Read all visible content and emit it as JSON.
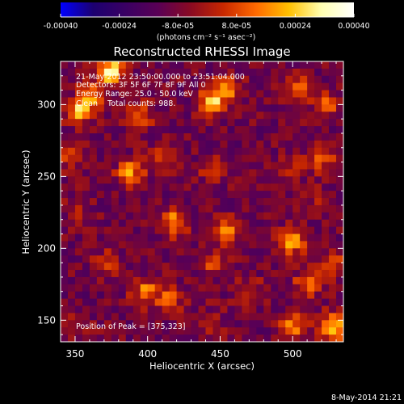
{
  "colorbar": {
    "tick_labels": [
      "-0.00040",
      "-0.00024",
      "-8.0e-05",
      "8.0e-05",
      "0.00024",
      "0.00040"
    ],
    "tick_values": [
      -0.0004,
      -0.00024,
      -8e-05,
      8e-05,
      0.00024,
      0.0004
    ],
    "range": [
      -0.0004,
      0.0004
    ],
    "unit_label": "(photons cm⁻² s⁻¹ asec⁻²)",
    "colormap": [
      "#0000ff",
      "#1c0070",
      "#3a0063",
      "#5a0055",
      "#8a0a22",
      "#c82800",
      "#ff6a00",
      "#ffc000",
      "#ffffb0",
      "#ffffff"
    ]
  },
  "chart_data": {
    "type": "heatmap",
    "title": "Reconstructed RHESSI Image",
    "xlabel": "Heliocentric X (arcsec)",
    "ylabel": "Heliocentric Y (arcsec)",
    "xlim": [
      340,
      535
    ],
    "ylim": [
      135,
      330
    ],
    "xticks": [
      350,
      400,
      450,
      500
    ],
    "yticks": [
      150,
      200,
      250,
      300
    ],
    "info_lines": [
      "21-May-2012 23:50:00.000 to 23:51:04.000",
      "Detectors: 3F 5F 6F 7F 8F 9F All 0",
      "Energy Range: 25.0 - 50.0 keV",
      "Clean    Total counts: 988."
    ],
    "peak_label": "Position of Peak = [375,323]",
    "peak": [
      375,
      323
    ],
    "sources": [
      {
        "x": 375,
        "y": 323,
        "value": 0.0004
      },
      {
        "x": 352,
        "y": 295,
        "value": 0.0003
      },
      {
        "x": 362,
        "y": 305,
        "value": 0.00026
      },
      {
        "x": 395,
        "y": 292,
        "value": 0.00018
      },
      {
        "x": 445,
        "y": 302,
        "value": 0.0003
      },
      {
        "x": 455,
        "y": 312,
        "value": 0.00022
      },
      {
        "x": 505,
        "y": 312,
        "value": 0.00018
      },
      {
        "x": 523,
        "y": 300,
        "value": 0.0002
      },
      {
        "x": 345,
        "y": 265,
        "value": 0.00012
      },
      {
        "x": 388,
        "y": 252,
        "value": 0.00026
      },
      {
        "x": 410,
        "y": 262,
        "value": 0.00016
      },
      {
        "x": 445,
        "y": 255,
        "value": 0.00014
      },
      {
        "x": 500,
        "y": 258,
        "value": 0.00012
      },
      {
        "x": 520,
        "y": 263,
        "value": 0.00022
      },
      {
        "x": 352,
        "y": 228,
        "value": 0.0001
      },
      {
        "x": 418,
        "y": 218,
        "value": 0.00028
      },
      {
        "x": 455,
        "y": 212,
        "value": 0.00022
      },
      {
        "x": 520,
        "y": 232,
        "value": 0.00014
      },
      {
        "x": 372,
        "y": 190,
        "value": 0.00014
      },
      {
        "x": 445,
        "y": 188,
        "value": 0.00014
      },
      {
        "x": 500,
        "y": 205,
        "value": 0.0003
      },
      {
        "x": 528,
        "y": 190,
        "value": 0.0002
      },
      {
        "x": 398,
        "y": 170,
        "value": 0.00024
      },
      {
        "x": 415,
        "y": 165,
        "value": 0.00018
      },
      {
        "x": 470,
        "y": 170,
        "value": 0.00016
      },
      {
        "x": 510,
        "y": 175,
        "value": 0.00022
      },
      {
        "x": 500,
        "y": 145,
        "value": 0.00026
      },
      {
        "x": 528,
        "y": 145,
        "value": 0.00036
      },
      {
        "x": 445,
        "y": 148,
        "value": 0.0001
      },
      {
        "x": 352,
        "y": 148,
        "value": 8e-05
      }
    ]
  },
  "footer": {
    "date": "8-May-2014 21:21"
  }
}
